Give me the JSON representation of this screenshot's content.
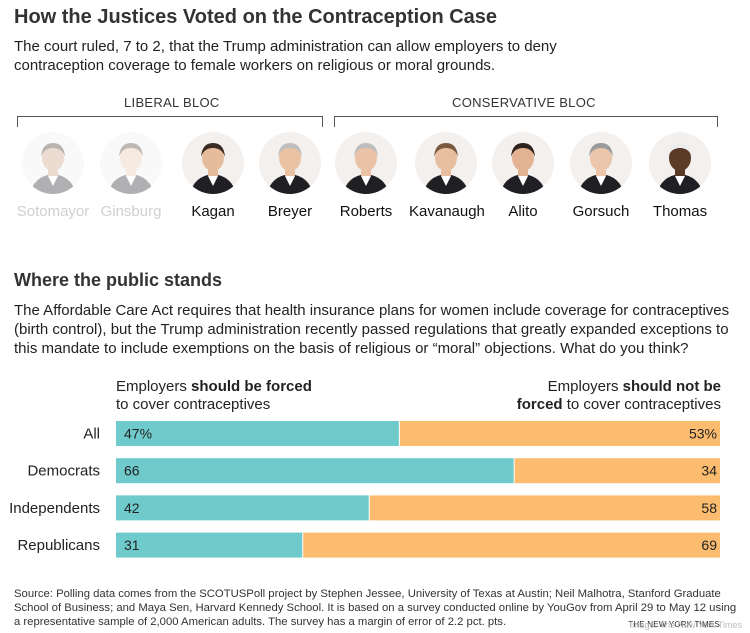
{
  "header": {
    "title": "How the Justices Voted on the Contraception Case",
    "subtitle": "The court ruled, 7 to 2, that the Trump administration can allow employers to deny contraception coverage to female workers on religious or moral grounds."
  },
  "blocs": {
    "liberal": "LIBERAL BLOC",
    "conservative": "CONSERVATIVE BLOC"
  },
  "justices": [
    {
      "name": "Sotomayor",
      "dissent": true
    },
    {
      "name": "Ginsburg",
      "dissent": true
    },
    {
      "name": "Kagan",
      "dissent": false
    },
    {
      "name": "Breyer",
      "dissent": false
    },
    {
      "name": "Roberts",
      "dissent": false
    },
    {
      "name": "Kavanaugh",
      "dissent": false
    },
    {
      "name": "Alito",
      "dissent": false
    },
    {
      "name": "Gorsuch",
      "dissent": false
    },
    {
      "name": "Thomas",
      "dissent": false
    }
  ],
  "poll": {
    "section_title": "Where the public stands",
    "question": "The Affordable Care Act requires that health insurance plans for women include coverage for contraceptives (birth control), but the Trump administration recently passed regulations that greatly expanded exceptions to this mandate to include exemptions on the basis of religious or “moral” objections. What do you think?",
    "left_head": {
      "pre": "Employers ",
      "bold": "should be forced",
      "line2": "to cover contraceptives"
    },
    "right_head": {
      "pre": "Employers ",
      "bold": "should not be",
      "bold2": "forced",
      "post": " to cover contraceptives"
    }
  },
  "chart_data": {
    "type": "bar",
    "stacked": true,
    "orientation": "horizontal",
    "categories": [
      "All",
      "Democrats",
      "Independents",
      "Republicans"
    ],
    "series": [
      {
        "name": "Employers should be forced to cover contraceptives",
        "values": [
          47,
          66,
          42,
          31
        ],
        "color": "#6fcbcb"
      },
      {
        "name": "Employers should not be forced to cover contraceptives",
        "values": [
          53,
          34,
          58,
          69
        ],
        "color": "#fcbc70"
      }
    ],
    "value_labels": [
      [
        "47%",
        "53%"
      ],
      [
        "66",
        "34"
      ],
      [
        "42",
        "58"
      ],
      [
        "31",
        "69"
      ]
    ],
    "xlim": [
      0,
      100
    ]
  },
  "footer": {
    "source": "Source: Polling data comes from the SCOTUSPoll project by Stephen Jessee, University of Texas at Austin; Neil Malhotra, Stanford Graduate School of Business; and Maya Sen, Harvard Kennedy School. It is based on a survey conducted online by YouGov from April 29 to May 12 using a representative sample of 2,000 American adults. The survey has a margin of error of 2.2 pct. pts.",
    "credit": "THE NEW YORK TIMES",
    "watermark": "Image: The New York Times"
  }
}
